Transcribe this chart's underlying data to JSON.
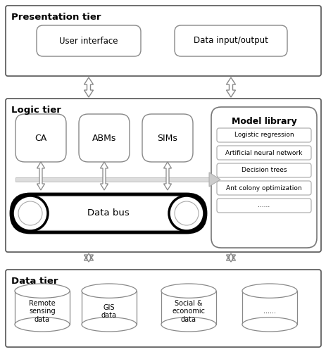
{
  "bg_color": "#ffffff",
  "presentation_tier_label": "Presentation tier",
  "ui_box_label": "User interface",
  "dio_box_label": "Data input/output",
  "logic_tier_label": "Logic tier",
  "model_boxes": [
    "CA",
    "ABMs",
    "SIMs"
  ],
  "model_library_label": "Model library",
  "model_library_items": [
    "Logistic regression",
    "Artificial neural network",
    "Decision trees",
    "Ant colony optimization",
    "......"
  ],
  "data_tier_label": "Data tier",
  "cylinders": [
    "Remote\nsensing\ndata",
    "GIS\ndata",
    "Social &\neconomic\ndata",
    "......"
  ],
  "databus_label": "Data bus"
}
